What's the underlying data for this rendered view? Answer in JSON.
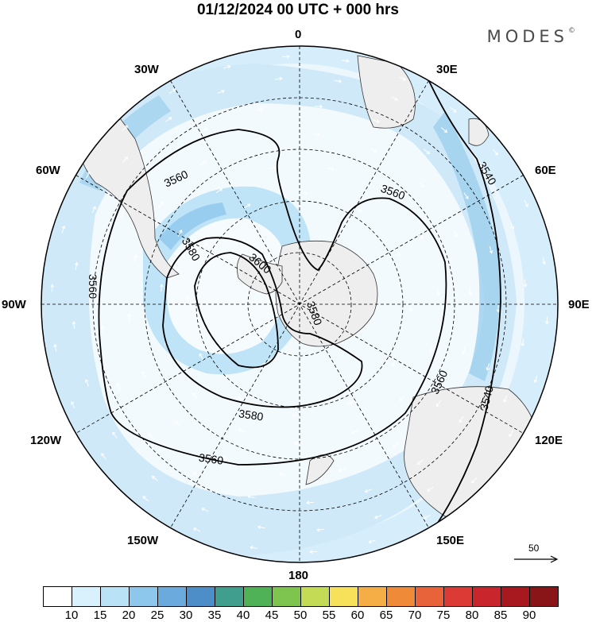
{
  "title": "01/12/2024  00 UTC  + 000 hrs",
  "brand": "MODES",
  "brand_mark": "©",
  "longitude_labels": [
    "0",
    "30E",
    "60E",
    "90E",
    "120E",
    "150E",
    "180",
    "150W",
    "120W",
    "90W",
    "60W",
    "30W"
  ],
  "contour_labels": [
    "3560",
    "3560",
    "3560",
    "3540",
    "3540",
    "3560",
    "3580",
    "3600",
    "3580",
    "3580",
    "3560"
  ],
  "reference_vector_label": "50",
  "colorbar": {
    "ticks": [
      "10",
      "15",
      "20",
      "25",
      "30",
      "35",
      "40",
      "45",
      "50",
      "55",
      "60",
      "65",
      "70",
      "75",
      "80",
      "85",
      "90"
    ],
    "colors": [
      "#ffffff",
      "#d9f1fd",
      "#b9e2f7",
      "#8ec7ec",
      "#6baadd",
      "#4d8ec8",
      "#3f9e8e",
      "#4fb257",
      "#7dc54e",
      "#c4dc55",
      "#f7e15a",
      "#f5ae45",
      "#ef8a38",
      "#e8623a",
      "#dc3a35",
      "#c9252c",
      "#a8191f",
      "#8a1518"
    ]
  },
  "colors": {
    "land": "#eeeeee",
    "wind_light": "#d6eefb",
    "wind_mid": "#b5dcf3",
    "wind_core": "#8ec7ec"
  }
}
